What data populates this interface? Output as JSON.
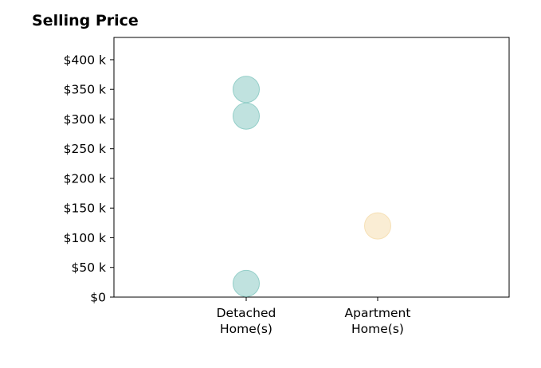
{
  "chart_data": {
    "type": "scatter",
    "title": "Selling Price",
    "xlabel": "",
    "ylabel": "",
    "categories": [
      [
        "Detached",
        "Home(s)"
      ],
      [
        "Apartment",
        "Home(s)"
      ]
    ],
    "ylim": [
      0,
      437500
    ],
    "yticks": [
      {
        "value": 0,
        "label": "$0"
      },
      {
        "value": 50000,
        "label": "$50 k"
      },
      {
        "value": 100000,
        "label": "$100 k"
      },
      {
        "value": 150000,
        "label": "$150 k"
      },
      {
        "value": 200000,
        "label": "$200 k"
      },
      {
        "value": 250000,
        "label": "$250 k"
      },
      {
        "value": 300000,
        "label": "$300 k"
      },
      {
        "value": 350000,
        "label": "$350 k"
      },
      {
        "value": 400000,
        "label": "$400 k"
      }
    ],
    "points": [
      {
        "category": 0,
        "y": 350000,
        "color": "#8ccbc4"
      },
      {
        "category": 0,
        "y": 305000,
        "color": "#8ccbc4"
      },
      {
        "category": 0,
        "y": 23000,
        "color": "#8ccbc4"
      },
      {
        "category": 1,
        "y": 120000,
        "color": "#f5deb0"
      }
    ],
    "grid": false,
    "legend": "none"
  }
}
